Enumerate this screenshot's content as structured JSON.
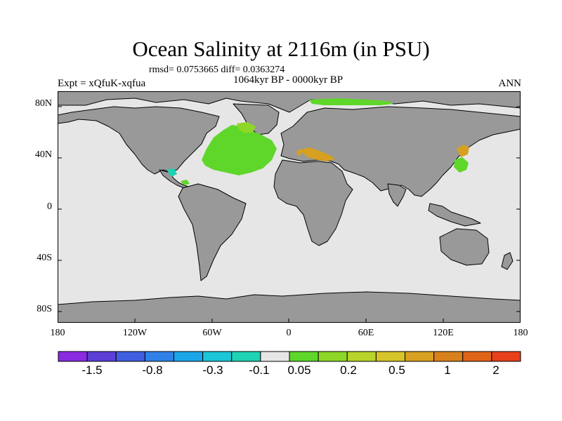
{
  "header": {
    "title": "Ocean Salinity at 2116m (in PSU)",
    "stats": "rmsd= 0.0753665 diff= 0.0363274",
    "period": "1064kyr BP - 0000kyr BP",
    "experiment": "Expt = xQfuK-xqfua",
    "season": "ANN"
  },
  "axes": {
    "lat_labels": [
      "80N",
      "40N",
      "0",
      "40S",
      "80S"
    ],
    "lon_labels": [
      "180",
      "120W",
      "60W",
      "0",
      "60E",
      "120E",
      "180"
    ]
  },
  "colors": {
    "land": "#999999",
    "ocean_neutral": "#e6e6e6",
    "coast": "#000000",
    "palette": [
      "#8a2be2",
      "#5b3fd6",
      "#3f5fe0",
      "#2f80e8",
      "#1aa6e8",
      "#1cc6d8",
      "#1ed2b4",
      "#e6e6e6",
      "#5fd62a",
      "#8ed628",
      "#b8d42a",
      "#d6c42a",
      "#d8a020",
      "#d8801c",
      "#e06418",
      "#e8401a"
    ]
  },
  "colorbar": {
    "tick_labels": [
      "-1.5",
      "-0.8",
      "-0.3",
      "-0.1",
      "0.05",
      "0.2",
      "0.5",
      "1",
      "2"
    ]
  },
  "anomaly_regions": [
    {
      "name": "north-atlantic",
      "category": "0.05-0.2"
    },
    {
      "name": "labrador-sea",
      "category": "0.2"
    },
    {
      "name": "mediterranean",
      "category": "0.5-1"
    },
    {
      "name": "japan-sea",
      "category": "0.5-1"
    },
    {
      "name": "gulf-of-mexico",
      "category": "-0.1"
    },
    {
      "name": "arctic-fringe",
      "category": "0.05-0.2"
    }
  ]
}
